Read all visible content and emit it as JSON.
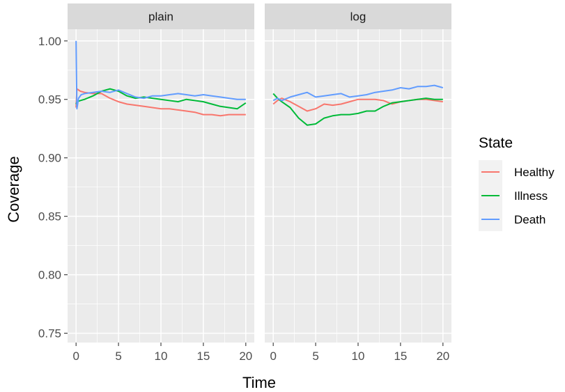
{
  "chart_data": {
    "type": "line",
    "xlabel": "Time",
    "ylabel": "Coverage",
    "xlim": [
      -1,
      21
    ],
    "ylim": [
      0.742,
      1.01
    ],
    "x_ticks": [
      0,
      5,
      10,
      15,
      20
    ],
    "x_tick_labels": [
      "0",
      "5",
      "10",
      "15",
      "20"
    ],
    "y_ticks": [
      0.75,
      0.8,
      0.85,
      0.9,
      0.95,
      1.0
    ],
    "y_tick_labels": [
      "0.75",
      "0.80",
      "0.85",
      "0.90",
      "0.95",
      "1.00"
    ],
    "grid": true,
    "legend": {
      "title": "State",
      "position": "right",
      "entries": [
        {
          "label": "Healthy",
          "color": "#F8766D"
        },
        {
          "label": "Illness",
          "color": "#00BA38"
        },
        {
          "label": "Death",
          "color": "#619CFF"
        }
      ]
    },
    "panels": [
      {
        "title": "plain",
        "series": [
          {
            "name": "Healthy",
            "color": "#F8766D",
            "x": [
              0,
              0.1,
              0.5,
              1,
              2,
              3,
              4,
              5,
              6,
              7,
              8,
              9,
              10,
              11,
              12,
              13,
              14,
              15,
              16,
              17,
              18,
              19,
              20
            ],
            "y": [
              0.943,
              0.959,
              0.957,
              0.956,
              0.955,
              0.955,
              0.951,
              0.948,
              0.946,
              0.945,
              0.944,
              0.943,
              0.942,
              0.942,
              0.941,
              0.94,
              0.939,
              0.937,
              0.937,
              0.936,
              0.937,
              0.937,
              0.937
            ]
          },
          {
            "name": "Illness",
            "color": "#00BA38",
            "x": [
              0,
              0.1,
              0.5,
              1,
              2,
              3,
              4,
              5,
              6,
              7,
              8,
              9,
              10,
              11,
              12,
              13,
              14,
              15,
              16,
              17,
              18,
              19,
              20
            ],
            "y": [
              0.946,
              0.948,
              0.949,
              0.95,
              0.953,
              0.957,
              0.959,
              0.957,
              0.953,
              0.951,
              0.952,
              0.951,
              0.95,
              0.949,
              0.948,
              0.95,
              0.949,
              0.948,
              0.946,
              0.944,
              0.943,
              0.942,
              0.947
            ]
          },
          {
            "name": "Death",
            "color": "#619CFF",
            "x": [
              0,
              0.05,
              0.1,
              0.3,
              0.6,
              1,
              2,
              3,
              4,
              5,
              6,
              7,
              8,
              9,
              10,
              11,
              12,
              13,
              14,
              15,
              16,
              17,
              18,
              19,
              20
            ],
            "y": [
              1.0,
              0.97,
              0.942,
              0.951,
              0.954,
              0.955,
              0.956,
              0.957,
              0.956,
              0.958,
              0.955,
              0.952,
              0.951,
              0.953,
              0.953,
              0.954,
              0.955,
              0.954,
              0.953,
              0.954,
              0.953,
              0.952,
              0.951,
              0.95,
              0.95
            ]
          }
        ]
      },
      {
        "title": "log",
        "series": [
          {
            "name": "Healthy",
            "color": "#F8766D",
            "x": [
              0,
              0.5,
              1,
              2,
              3,
              4,
              5,
              6,
              7,
              8,
              9,
              10,
              11,
              12,
              13,
              14,
              15,
              16,
              17,
              18,
              19,
              20
            ],
            "y": [
              0.946,
              0.949,
              0.951,
              0.948,
              0.944,
              0.94,
              0.942,
              0.946,
              0.945,
              0.946,
              0.948,
              0.95,
              0.95,
              0.95,
              0.949,
              0.946,
              0.948,
              0.949,
              0.95,
              0.95,
              0.949,
              0.948
            ]
          },
          {
            "name": "Illness",
            "color": "#00BA38",
            "x": [
              0,
              0.5,
              1,
              2,
              3,
              4,
              5,
              6,
              7,
              8,
              9,
              10,
              11,
              12,
              13,
              14,
              15,
              16,
              17,
              18,
              19,
              20
            ],
            "y": [
              0.955,
              0.951,
              0.948,
              0.943,
              0.934,
              0.928,
              0.929,
              0.934,
              0.936,
              0.937,
              0.937,
              0.938,
              0.94,
              0.94,
              0.944,
              0.947,
              0.948,
              0.949,
              0.95,
              0.951,
              0.95,
              0.95
            ]
          },
          {
            "name": "Death",
            "color": "#619CFF",
            "x": [
              0,
              0.5,
              1,
              2,
              3,
              4,
              5,
              6,
              7,
              8,
              9,
              10,
              11,
              12,
              13,
              14,
              15,
              16,
              17,
              18,
              19,
              20
            ],
            "y": [
              0.949,
              0.951,
              0.949,
              0.952,
              0.954,
              0.956,
              0.952,
              0.953,
              0.954,
              0.955,
              0.952,
              0.953,
              0.954,
              0.956,
              0.957,
              0.958,
              0.96,
              0.959,
              0.961,
              0.961,
              0.962,
              0.96
            ]
          }
        ]
      }
    ]
  }
}
